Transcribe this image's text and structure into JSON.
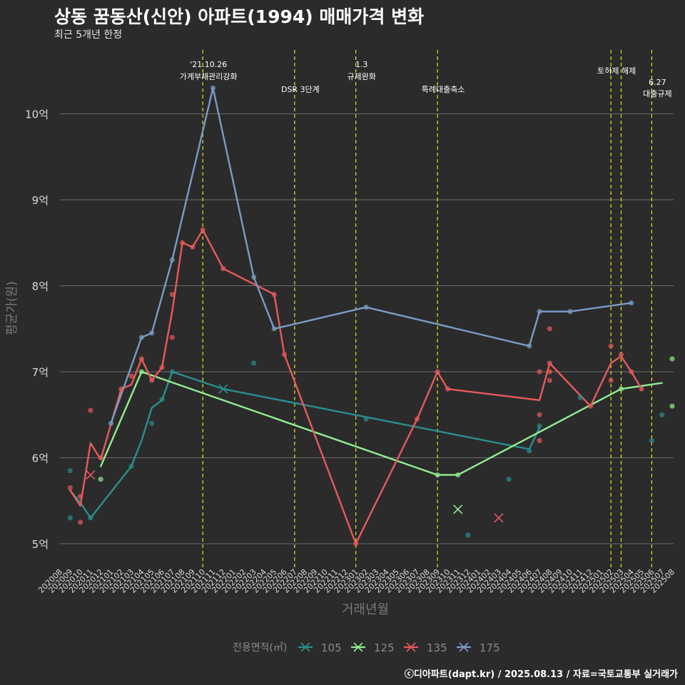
{
  "chart_data": {
    "type": "line",
    "title": "상동 꿈동산(신안) 아파트(1994) 매매가격 변화",
    "subtitle": "최근 5개년 한정",
    "xlabel": "거래년월",
    "ylabel": "평균가(원)",
    "ylim": [
      4.8,
      10.8
    ],
    "y_ticks": [
      {
        "value": 5,
        "label": "5억"
      },
      {
        "value": 6,
        "label": "6억"
      },
      {
        "value": 7,
        "label": "7억"
      },
      {
        "value": 8,
        "label": "8억"
      },
      {
        "value": 9,
        "label": "9억"
      },
      {
        "value": 10,
        "label": "10억"
      }
    ],
    "x_ticks": [
      "202008",
      "202009",
      "202010",
      "202011",
      "202012",
      "202101",
      "202102",
      "202103",
      "202104",
      "202105",
      "202106",
      "202107",
      "202108",
      "202109",
      "202110",
      "202111",
      "202112",
      "202201",
      "202202",
      "202203",
      "202204",
      "202205",
      "202206",
      "202207",
      "202208",
      "202209",
      "202210",
      "202211",
      "202212",
      "202301",
      "202302",
      "202303",
      "202304",
      "202305",
      "202306",
      "202307",
      "202308",
      "202309",
      "202310",
      "202311",
      "202312",
      "202401",
      "202402",
      "202403",
      "202404",
      "202405",
      "202406",
      "202407",
      "202408",
      "202409",
      "202410",
      "202411",
      "202412",
      "202501",
      "202502",
      "202503",
      "202504",
      "202505",
      "202506",
      "202507",
      "202508"
    ],
    "grid": true,
    "legend": {
      "title": "전용면적(㎡)",
      "position": "bottom"
    },
    "series": [
      {
        "name": "105",
        "color": "#2a8f8f",
        "line": [
          [
            "202009",
            5.62
          ],
          [
            "202010",
            5.48
          ],
          [
            "202011",
            5.3
          ],
          [
            "202103",
            5.9
          ],
          [
            "202104",
            6.2
          ],
          [
            "202105",
            6.58
          ],
          [
            "202106",
            6.67
          ],
          [
            "202107",
            7.0
          ],
          [
            "202112",
            6.8
          ],
          [
            "202406",
            6.1
          ],
          [
            "202407",
            6.35
          ]
        ],
        "points": [
          [
            "202009",
            5.85
          ],
          [
            "202009",
            5.3
          ],
          [
            "202011",
            5.3
          ],
          [
            "202103",
            5.9
          ],
          [
            "202105",
            6.4
          ],
          [
            "202106",
            6.68
          ],
          [
            "202107",
            7.0
          ],
          [
            "202203",
            7.1
          ],
          [
            "202302",
            6.45
          ],
          [
            "202312",
            5.1
          ],
          [
            "202404",
            5.75
          ],
          [
            "202406",
            6.08
          ],
          [
            "202407",
            6.37
          ],
          [
            "202411",
            6.7
          ],
          [
            "202506",
            6.2
          ],
          [
            "202507",
            6.5
          ]
        ],
        "cross": [
          [
            "202112",
            6.8
          ]
        ]
      },
      {
        "name": "125",
        "color": "#90ee90",
        "line": [
          [
            "202012",
            5.9
          ],
          [
            "202104",
            7.0
          ],
          [
            "202309",
            5.8
          ],
          [
            "202311",
            5.8
          ],
          [
            "202503",
            6.8
          ],
          [
            "202507",
            6.87
          ]
        ],
        "points": [
          [
            "202012",
            5.75
          ],
          [
            "202104",
            7.0
          ],
          [
            "202309",
            5.8
          ],
          [
            "202311",
            5.8
          ],
          [
            "202503",
            6.8
          ],
          [
            "202508",
            7.15
          ],
          [
            "202508",
            6.6
          ]
        ],
        "cross": [
          [
            "202311",
            5.4
          ]
        ]
      },
      {
        "name": "135",
        "color": "#e85a5a",
        "line": [
          [
            "202009",
            5.62
          ],
          [
            "202010",
            5.44
          ],
          [
            "202011",
            6.17
          ],
          [
            "202012",
            5.98
          ],
          [
            "202102",
            6.8
          ],
          [
            "202103",
            6.85
          ],
          [
            "202104",
            7.15
          ],
          [
            "202105",
            6.9
          ],
          [
            "202106",
            7.05
          ],
          [
            "202107",
            7.7
          ],
          [
            "202108",
            8.5
          ],
          [
            "202109",
            8.45
          ],
          [
            "202110",
            8.65
          ],
          [
            "202112",
            8.2
          ],
          [
            "202205",
            7.9
          ],
          [
            "202206",
            7.2
          ],
          [
            "202301",
            5.0
          ],
          [
            "202307",
            6.45
          ],
          [
            "202309",
            7.0
          ],
          [
            "202310",
            6.8
          ],
          [
            "202407",
            6.67
          ],
          [
            "202408",
            7.1
          ],
          [
            "202412",
            6.6
          ],
          [
            "202502",
            7.1
          ],
          [
            "202503",
            7.18
          ],
          [
            "202504",
            7.0
          ],
          [
            "202505",
            6.8
          ]
        ],
        "points": [
          [
            "202009",
            5.65
          ],
          [
            "202010",
            5.55
          ],
          [
            "202010",
            5.25
          ],
          [
            "202011",
            6.55
          ],
          [
            "202012",
            6.0
          ],
          [
            "202102",
            6.8
          ],
          [
            "202103",
            6.95
          ],
          [
            "202104",
            7.15
          ],
          [
            "202105",
            6.9
          ],
          [
            "202106",
            7.05
          ],
          [
            "202107",
            7.9
          ],
          [
            "202107",
            7.4
          ],
          [
            "202108",
            8.5
          ],
          [
            "202109",
            8.45
          ],
          [
            "202110",
            8.65
          ],
          [
            "202112",
            8.2
          ],
          [
            "202205",
            7.9
          ],
          [
            "202206",
            7.2
          ],
          [
            "202301",
            5.0
          ],
          [
            "202307",
            6.45
          ],
          [
            "202309",
            7.0
          ],
          [
            "202310",
            6.8
          ],
          [
            "202407",
            7.0
          ],
          [
            "202407",
            6.5
          ],
          [
            "202407",
            6.2
          ],
          [
            "202408",
            7.1
          ],
          [
            "202408",
            7.5
          ],
          [
            "202408",
            7.0
          ],
          [
            "202408",
            6.9
          ],
          [
            "202412",
            6.6
          ],
          [
            "202502",
            7.3
          ],
          [
            "202502",
            6.9
          ],
          [
            "202503",
            7.2
          ],
          [
            "202504",
            7.0
          ],
          [
            "202505",
            6.8
          ]
        ],
        "cross": [
          [
            "202011",
            5.8
          ],
          [
            "202403",
            5.3
          ]
        ]
      },
      {
        "name": "175",
        "color": "#7b9cc4",
        "line": [
          [
            "202101",
            6.4
          ],
          [
            "202104",
            7.4
          ],
          [
            "202105",
            7.45
          ],
          [
            "202107",
            8.3
          ],
          [
            "202111",
            10.3
          ],
          [
            "202203",
            8.1
          ],
          [
            "202205",
            7.5
          ],
          [
            "202302",
            7.75
          ],
          [
            "202406",
            7.3
          ],
          [
            "202407",
            7.7
          ],
          [
            "202410",
            7.7
          ],
          [
            "202504",
            7.8
          ]
        ],
        "points": [
          [
            "202101",
            6.4
          ],
          [
            "202104",
            7.4
          ],
          [
            "202105",
            7.45
          ],
          [
            "202107",
            8.3
          ],
          [
            "202111",
            10.3
          ],
          [
            "202203",
            8.1
          ],
          [
            "202205",
            7.5
          ],
          [
            "202302",
            7.75
          ],
          [
            "202406",
            7.3
          ],
          [
            "202407",
            7.7
          ],
          [
            "202410",
            7.7
          ],
          [
            "202504",
            7.8
          ]
        ],
        "cross": []
      }
    ],
    "annotations": [
      {
        "x": "202110",
        "lines": [
          "'21.10.26",
          "가계부채관리강화"
        ],
        "level": "top"
      },
      {
        "x": "202207",
        "lines": [
          "DSR 3단계"
        ],
        "level": "low"
      },
      {
        "x": "202301",
        "lines": [
          "1.3",
          "규제완화"
        ],
        "level": "top"
      },
      {
        "x": "202309",
        "lines": [
          "특례대출축소"
        ],
        "level": "low"
      },
      {
        "x": "202502",
        "lines": [
          "토허제 해제"
        ],
        "level": "mid"
      },
      {
        "x": "202503",
        "lines": [],
        "level": "none"
      },
      {
        "x": "202506",
        "lines": [
          "6.27",
          "대출규제"
        ],
        "level": "low"
      }
    ]
  },
  "caption": "ⓒ디아파트(dapt.kr) / 2025.08.13 / 자료=국토교통부 실거래가"
}
